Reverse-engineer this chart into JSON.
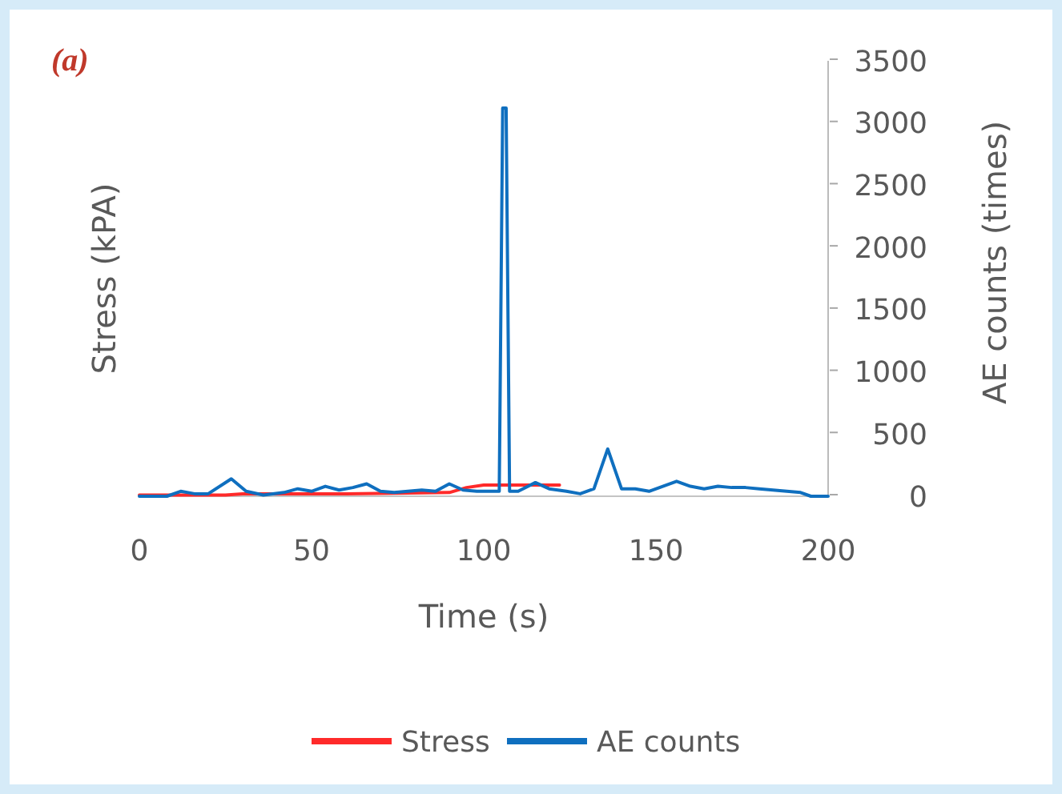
{
  "chart_data": {
    "type": "line",
    "title": "(a)",
    "xlabel": "Time (s)",
    "ylabel": "Stress (kPA)",
    "y2label": "AE counts (times)",
    "xlim": [
      0,
      200
    ],
    "xticks": [
      0,
      50,
      100,
      150,
      200
    ],
    "y2lim": [
      0,
      3500
    ],
    "y2ticks": [
      0,
      500,
      1000,
      1500,
      2000,
      2500,
      3000,
      3500
    ],
    "grid": false,
    "legend": "bottom",
    "line_style": "solid",
    "tick_labels": "xy2",
    "series": [
      {
        "name": "Stress",
        "color": "#ff2a2a",
        "axis": "y2",
        "x": [
          0,
          25,
          30,
          60,
          90,
          95,
          100,
          110,
          122
        ],
        "values": [
          10,
          10,
          20,
          20,
          30,
          70,
          90,
          90,
          90
        ]
      },
      {
        "name": "AE counts",
        "color": "#0f6fbf",
        "axis": "y2",
        "x": [
          0,
          8,
          12,
          16,
          20,
          26.7,
          31,
          36,
          42,
          46,
          50,
          54,
          58,
          62,
          66,
          70,
          74,
          78,
          82,
          86,
          90,
          94,
          98,
          102,
          104.5,
          105.5,
          106.5,
          107.5,
          110,
          115,
          119,
          124,
          128,
          132,
          136,
          140,
          144,
          148,
          152,
          156,
          160,
          164,
          168,
          172,
          176,
          180,
          184,
          188,
          192,
          195,
          200
        ],
        "values": [
          0,
          0,
          40,
          20,
          20,
          140,
          40,
          10,
          30,
          60,
          40,
          80,
          50,
          70,
          100,
          40,
          30,
          40,
          50,
          40,
          100,
          50,
          40,
          40,
          40,
          3120,
          3120,
          40,
          40,
          110,
          60,
          40,
          20,
          60,
          380,
          60,
          60,
          40,
          80,
          120,
          80,
          60,
          80,
          70,
          70,
          60,
          50,
          40,
          30,
          0,
          0
        ]
      }
    ]
  }
}
